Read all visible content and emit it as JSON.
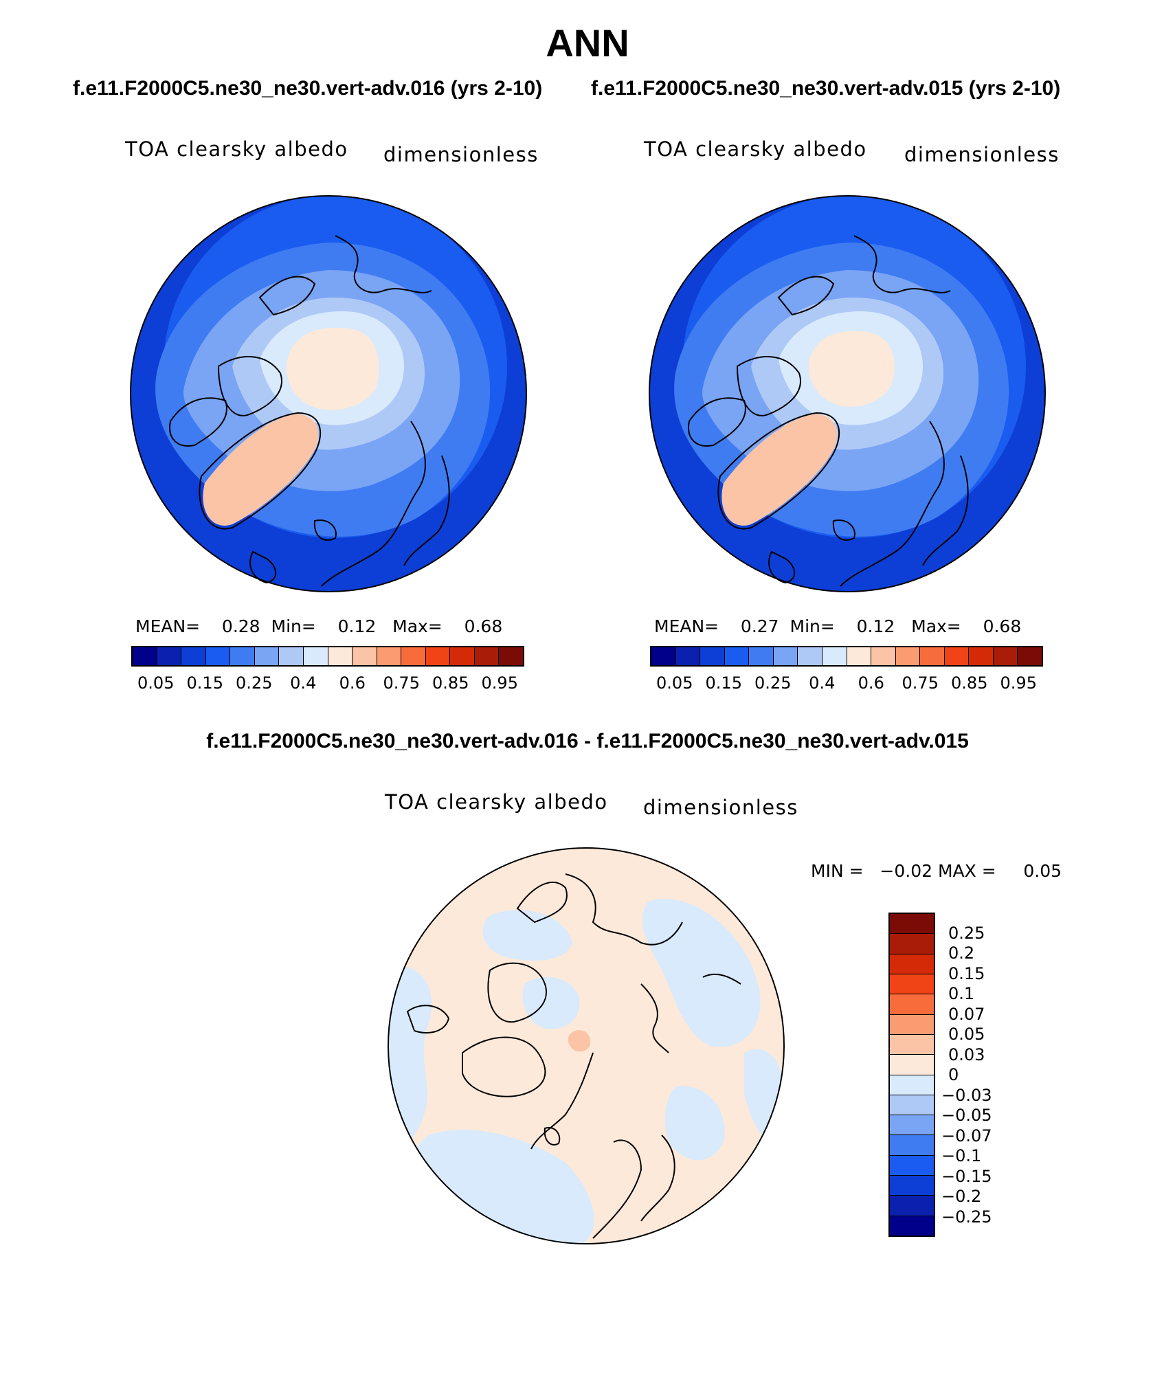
{
  "title": "ANN",
  "subtitles": {
    "left": "f.e11.F2000C5.ne30_ne30.vert-adv.016 (yrs 2-10)",
    "right": "f.e11.F2000C5.ne30_ne30.vert-adv.015 (yrs 2-10)",
    "diff": "f.e11.F2000C5.ne30_ne30.vert-adv.016 - f.e11.F2000C5.ne30_ne30.vert-adv.015"
  },
  "panels": [
    {
      "variable": "TOA clearsky albedo",
      "units": "dimensionless",
      "stats": {
        "mean_label": "MEAN=",
        "mean": "0.28",
        "min_label": "Min=",
        "min": "0.12",
        "max_label": "Max=",
        "max": "0.68"
      }
    },
    {
      "variable": "TOA clearsky albedo",
      "units": "dimensionless",
      "stats": {
        "mean_label": "MEAN=",
        "mean": "0.27",
        "min_label": "Min=",
        "min": "0.12",
        "max_label": "Max=",
        "max": "0.68"
      }
    },
    {
      "variable": "TOA clearsky albedo",
      "units": "dimensionless",
      "stats": {
        "min_label": "MIN =",
        "min": "−0.02",
        "max_label": "MAX =",
        "max": "0.05"
      }
    }
  ],
  "colorbar_abs": {
    "labels": [
      "0.05",
      "0.15",
      "0.25",
      "0.4",
      "0.6",
      "0.75",
      "0.85",
      "0.95"
    ],
    "colors": [
      "#00008a",
      "#0a21b0",
      "#0d3fd6",
      "#1a5cf0",
      "#3f7cf2",
      "#7aa4f4",
      "#afc9f7",
      "#d8eafc",
      "#fde9d9",
      "#fcc4a6",
      "#fb9b72",
      "#f86c3c",
      "#f04316",
      "#d42a08",
      "#a91c08",
      "#7a0b05"
    ]
  },
  "colorbar_diff": {
    "labels": [
      "0.25",
      "0.2",
      "0.15",
      "0.1",
      "0.07",
      "0.05",
      "0.03",
      "0",
      "−0.03",
      "−0.05",
      "−0.07",
      "−0.1",
      "−0.15",
      "−0.2",
      "−0.25"
    ],
    "colors": [
      "#7a0b05",
      "#a91c08",
      "#d42a08",
      "#f04316",
      "#f86c3c",
      "#fb9b72",
      "#fcc4a6",
      "#fde9d9",
      "#d8eafc",
      "#afc9f7",
      "#7aa4f4",
      "#3f7cf2",
      "#1a5cf0",
      "#0d3fd6",
      "#0a21b0",
      "#00008a"
    ]
  },
  "map_colors": {
    "ocean_low": "#0d3fd6",
    "ocean_mid": "#1a5cf0",
    "band1": "#3f7cf2",
    "band2": "#7aa4f4",
    "band3": "#afc9f7",
    "arctic": "#d8eafc",
    "pole": "#fde9d9",
    "greenland": "#fcc4a6",
    "diff_pos": "#fde9d9",
    "diff_neg": "#d8eafc",
    "diff_peak": "#fcc4a6"
  }
}
